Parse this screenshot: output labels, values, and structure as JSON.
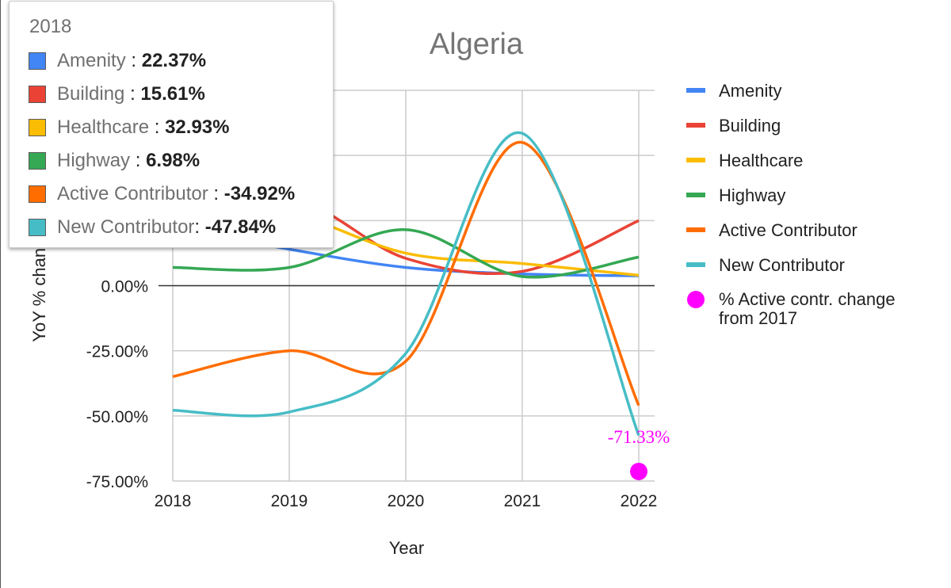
{
  "chart_data": {
    "type": "line",
    "title": "Algeria",
    "xlabel": "Year",
    "ylabel": "YoY % change",
    "x": [
      2018,
      2019,
      2020,
      2021,
      2022
    ],
    "x_tick_labels": [
      "2018",
      "2019",
      "2020",
      "2021",
      "2022"
    ],
    "ylim": [
      -75,
      75
    ],
    "y_ticks": [
      -75,
      -50,
      -25,
      0,
      25,
      50,
      75
    ],
    "y_tick_labels": [
      "-75.00%",
      "-50.00%",
      "-25.00%",
      "0.00%",
      "",
      "",
      ""
    ],
    "grid": true,
    "legend_position": "right",
    "series": [
      {
        "name": "Amenity",
        "color": "#4285f4",
        "values": [
          22.37,
          14.0,
          7.0,
          4.5,
          3.8
        ]
      },
      {
        "name": "Building",
        "color": "#ea4335",
        "values": [
          15.61,
          33.0,
          10.5,
          5.5,
          25.0
        ]
      },
      {
        "name": "Healthcare",
        "color": "#fbbc04",
        "values": [
          32.93,
          28.0,
          12.5,
          8.5,
          4.0
        ]
      },
      {
        "name": "Highway",
        "color": "#34a853",
        "values": [
          6.98,
          7.0,
          21.5,
          3.5,
          11.0
        ]
      },
      {
        "name": "Active Contributor",
        "color": "#ff6d01",
        "values": [
          -34.92,
          -25.0,
          -29.0,
          55.0,
          -46.0
        ]
      },
      {
        "name": "New Contributor",
        "color": "#46bdc6",
        "values": [
          -47.84,
          -48.5,
          -26.0,
          58.5,
          -57.5
        ]
      }
    ],
    "points": [
      {
        "name": "% Active contr. change from 2017",
        "legend_lines": [
          "% Active contr. change",
          "from 2017"
        ],
        "color": "#ff00ff",
        "x": 2022,
        "y": -71.33,
        "label": "-71.33%"
      }
    ],
    "tooltip": {
      "title": "2018",
      "rows": [
        {
          "name": "Amenity",
          "sep": " : ",
          "value": "22.37%",
          "color": "#4285f4"
        },
        {
          "name": "Building",
          "sep": " : ",
          "value": "15.61%",
          "color": "#ea4335"
        },
        {
          "name": "Healthcare",
          "sep": " : ",
          "value": "32.93%",
          "color": "#fbbc04"
        },
        {
          "name": "Highway",
          "sep": " : ",
          "value": "6.98%",
          "color": "#34a853"
        },
        {
          "name": "Active Contributor",
          "sep": " : ",
          "value": "-34.92%",
          "color": "#ff6d01"
        },
        {
          "name": "New Contributor",
          "sep": ": ",
          "value": "-47.84%",
          "color": "#46bdc6"
        }
      ]
    }
  }
}
